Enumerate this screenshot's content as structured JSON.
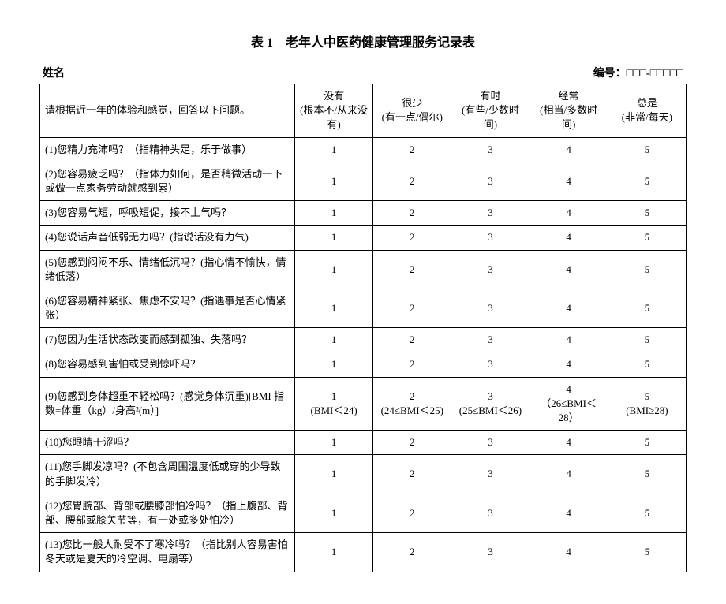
{
  "title": "表 1　老年人中医药健康管理服务记录表",
  "header": {
    "name_label": "姓名",
    "id_label": "编号：□□□-□□□□□"
  },
  "instruction": "请根据近一年的体验和感觉，回答以下问题。",
  "columns": [
    {
      "main": "没有",
      "sub": "(根本不/从来没有)"
    },
    {
      "main": "很少",
      "sub": "(有一点/偶尔)"
    },
    {
      "main": "有时",
      "sub": "(有些/少数时间)"
    },
    {
      "main": "经常",
      "sub": "(相当/多数时间)"
    },
    {
      "main": "总是",
      "sub": "(非常/每天)"
    }
  ],
  "rows": [
    {
      "q": "(1)您精力充沛吗？（指精神头足，乐于做事）",
      "v": [
        "1",
        "2",
        "3",
        "4",
        "5"
      ]
    },
    {
      "q": "(2)您容易疲乏吗？（指体力如何，是否稍微活动一下或做一点家务劳动就感到累）",
      "v": [
        "1",
        "2",
        "3",
        "4",
        "5"
      ]
    },
    {
      "q": "(3)您容易气短，呼吸短促，接不上气吗？",
      "v": [
        "1",
        "2",
        "3",
        "4",
        "5"
      ]
    },
    {
      "q": "(4)您说话声音低弱无力吗？(指说话没有力气)",
      "v": [
        "1",
        "2",
        "3",
        "4",
        "5"
      ]
    },
    {
      "q": "(5)您感到闷闷不乐、情绪低沉吗？(指心情不愉快，情绪低落）",
      "v": [
        "1",
        "2",
        "3",
        "4",
        "5"
      ]
    },
    {
      "q": "(6)您容易精神紧张、焦虑不安吗？(指遇事是否心情紧张）",
      "v": [
        "1",
        "2",
        "3",
        "4",
        "5"
      ]
    },
    {
      "q": "(7)您因为生活状态改变而感到孤独、失落吗？",
      "v": [
        "1",
        "2",
        "3",
        "4",
        "5"
      ]
    },
    {
      "q": "(8)您容易感到害怕或受到惊吓吗？",
      "v": [
        "1",
        "2",
        "3",
        "4",
        "5"
      ]
    },
    {
      "q": "(9)您感到身体超重不轻松吗？(感觉身体沉重)[BMI 指数=体重（kg）/身高²(m）]",
      "v": [
        "1\n(BMI＜24)",
        "2\n(24≤BMI＜25)",
        "3\n(25≤BMI＜26)",
        "4\n（26≤BMI＜28）",
        "5\n(BMI≥28)"
      ]
    },
    {
      "q": "(10)您眼睛干涩吗？",
      "v": [
        "1",
        "2",
        "3",
        "4",
        "5"
      ]
    },
    {
      "q": "(11)您手脚发凉吗？(不包含周围温度低或穿的少导致的手脚发冷）",
      "v": [
        "1",
        "2",
        "3",
        "4",
        "5"
      ]
    },
    {
      "q": "(12)您胃脘部、背部或腰膝部怕冷吗？（指上腹部、背部、腰部或膝关节等，有一处或多处怕冷）",
      "v": [
        "1",
        "2",
        "3",
        "4",
        "5"
      ]
    },
    {
      "q": "(13)您比一般人耐受不了寒冷吗？（指比别人容易害怕冬天或是夏天的冷空调、电扇等）",
      "v": [
        "1",
        "2",
        "3",
        "4",
        "5"
      ]
    }
  ]
}
